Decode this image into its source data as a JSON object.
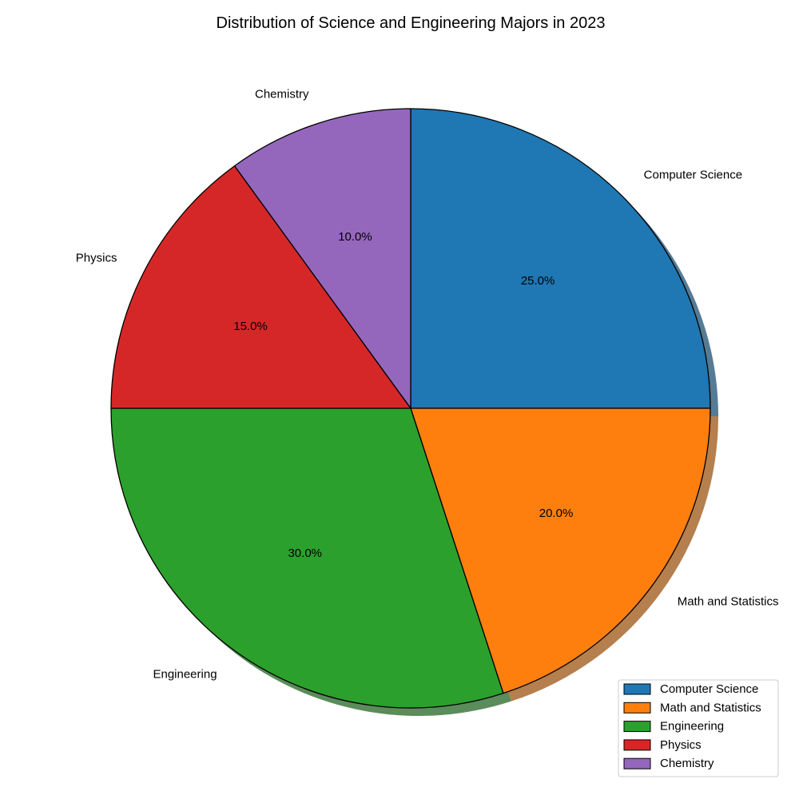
{
  "chart_data": {
    "type": "pie",
    "title": "Distribution of Science and Engineering Majors in 2023",
    "start_angle_deg": 90,
    "direction": "clockwise",
    "shadow": true,
    "legend_position": "bottom-right",
    "slices": [
      {
        "label": "Computer Science",
        "value": 25.0,
        "pct_label": "25.0%",
        "color": "#1f77b4"
      },
      {
        "label": "Math and Statistics",
        "value": 20.0,
        "pct_label": "20.0%",
        "color": "#ff7f0e"
      },
      {
        "label": "Engineering",
        "value": 30.0,
        "pct_label": "30.0%",
        "color": "#2ca02c"
      },
      {
        "label": "Physics",
        "value": 15.0,
        "pct_label": "15.0%",
        "color": "#d62728"
      },
      {
        "label": "Chemistry",
        "value": 10.0,
        "pct_label": "10.0%",
        "color": "#9467bd"
      }
    ]
  }
}
